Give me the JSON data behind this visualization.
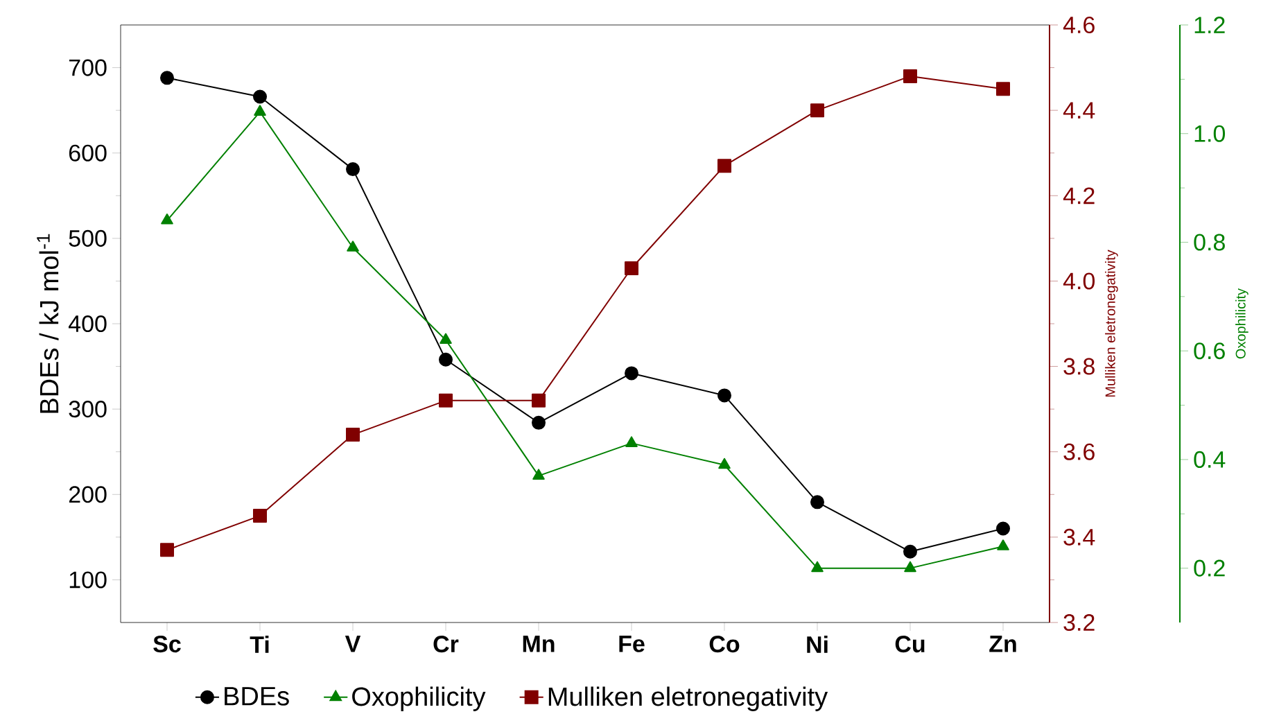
{
  "chart_data": {
    "type": "line",
    "categories": [
      "Sc",
      "Ti",
      "V",
      "Cr",
      "Mn",
      "Fe",
      "Co",
      "Ni",
      "Cu",
      "Zn"
    ],
    "series": [
      {
        "name": "BDEs",
        "color": "#000000",
        "marker": "circle",
        "values": [
          688,
          666,
          581,
          358,
          284,
          342,
          316,
          191,
          133,
          160
        ]
      },
      {
        "name": "Oxophilicity",
        "color": "#008000",
        "marker": "triangle",
        "axis": "y3",
        "values": [
          0.84,
          1.04,
          0.79,
          0.62,
          0.37,
          0.43,
          0.39,
          0.2,
          0.2,
          0.24
        ]
      },
      {
        "name": "Mulliken eletronegativity",
        "color": "#800000",
        "marker": "square",
        "axis": "y2",
        "values": [
          3.37,
          3.45,
          3.64,
          3.72,
          3.72,
          4.03,
          4.27,
          4.4,
          4.48,
          4.45
        ]
      }
    ],
    "ylabel": "BDEs / kJ mol$^{-1}$",
    "y2label": "Mulliken eletronegativity",
    "y3label": "Oxophilicity",
    "ylim": [
      50,
      750
    ],
    "yticks": [
      100,
      200,
      300,
      400,
      500,
      600,
      700
    ],
    "y2lim": [
      3.2,
      4.6
    ],
    "y2ticks": [
      3.2,
      3.4,
      3.6,
      3.8,
      {
        "value": 4.0,
        "label": "4.0"
      },
      4.2,
      4.4,
      4.6
    ],
    "y3lim": [
      0.1,
      1.2
    ],
    "y3ticks": [
      0.2,
      0.4,
      0.6,
      0.8,
      {
        "value": 1.0,
        "label": "1.0"
      },
      1.2
    ],
    "legend": "bottom"
  }
}
